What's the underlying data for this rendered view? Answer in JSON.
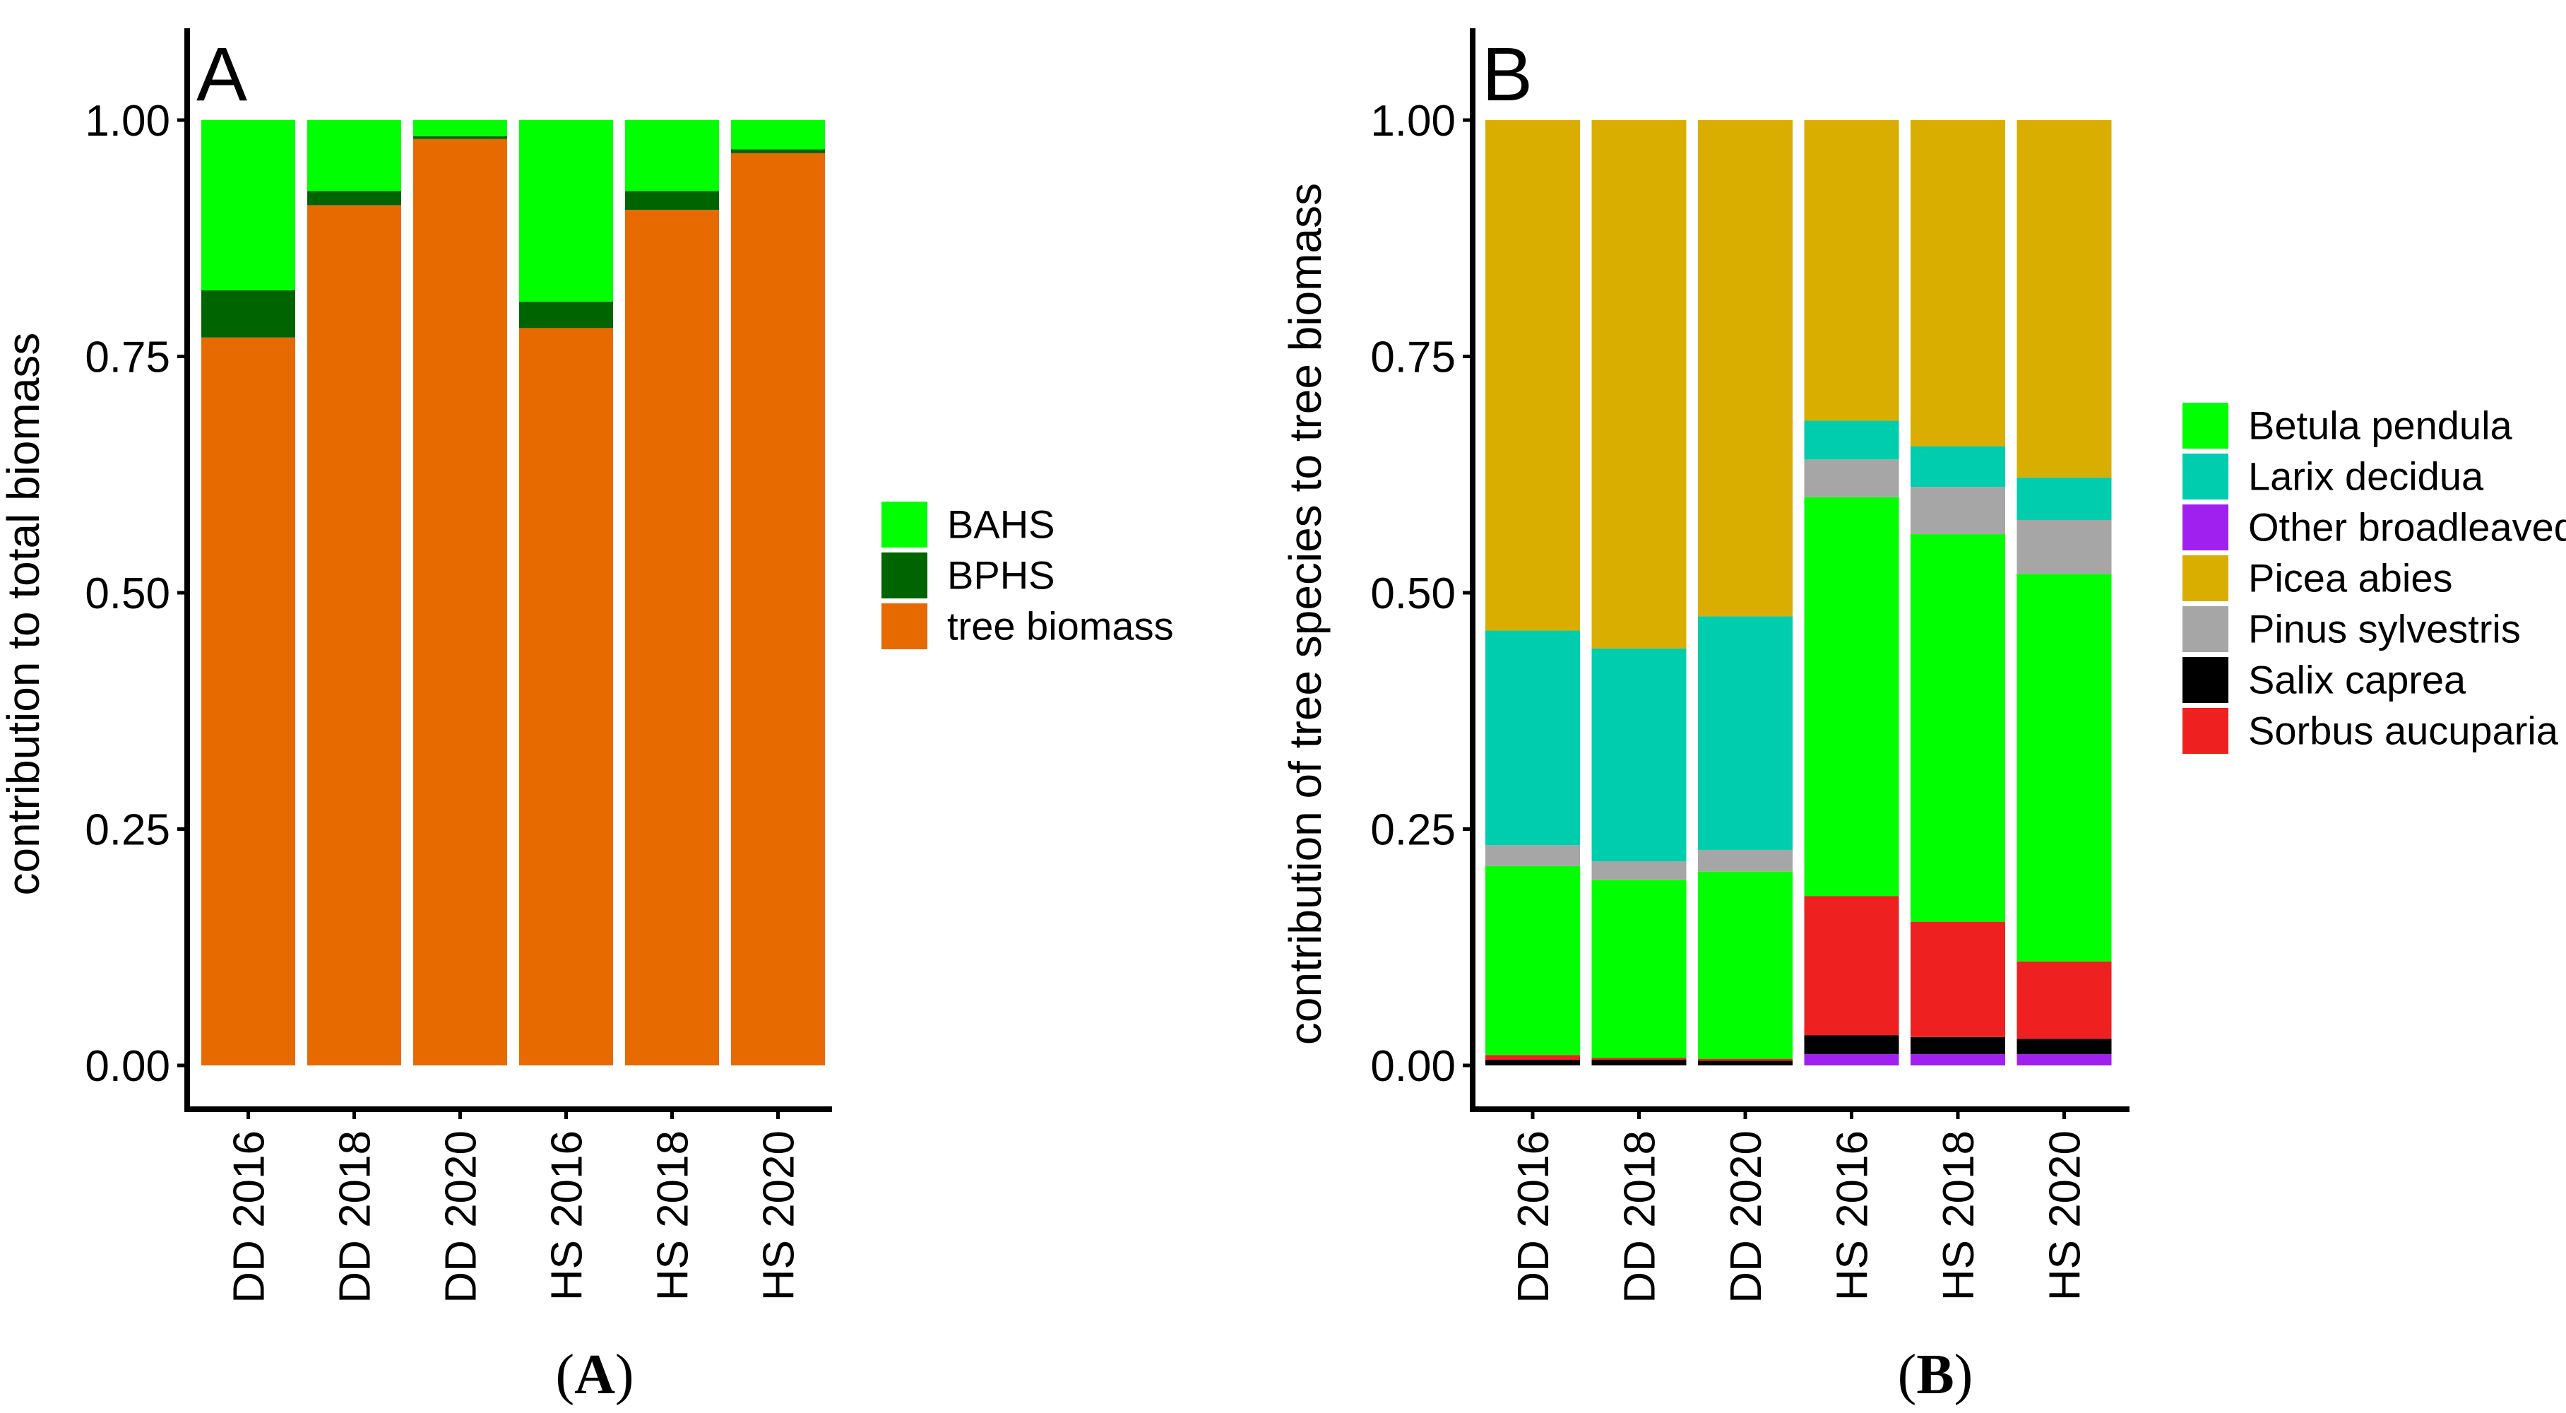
{
  "chart_data": [
    {
      "type": "bar",
      "stacked": true,
      "panel_letter": "A",
      "caption_label": "A",
      "categories": [
        "DD 2016",
        "DD 2018",
        "DD 2020",
        "HS 2016",
        "HS 2018",
        "HS 2020"
      ],
      "ylabel": "contribution to total biomass",
      "xlabel": "",
      "ylim": [
        0,
        1
      ],
      "yticks": [
        "0.00",
        "0.25",
        "0.50",
        "0.75",
        "1.00"
      ],
      "legend_position": "right",
      "series": [
        {
          "name": "tree biomass",
          "color": "#E66A00",
          "values": [
            0.77,
            0.91,
            0.98,
            0.78,
            0.905,
            0.965
          ]
        },
        {
          "name": "BPHS",
          "color": "#006400",
          "values": [
            0.05,
            0.015,
            0.003,
            0.028,
            0.02,
            0.004
          ]
        },
        {
          "name": "BAHS",
          "color": "#00FF00",
          "values": [
            0.18,
            0.075,
            0.017,
            0.192,
            0.075,
            0.031
          ]
        }
      ],
      "legend_order": [
        "BAHS",
        "BPHS",
        "tree biomass"
      ]
    },
    {
      "type": "bar",
      "stacked": true,
      "panel_letter": "B",
      "caption_label": "B",
      "categories": [
        "DD 2016",
        "DD 2018",
        "DD 2020",
        "HS 2016",
        "HS 2018",
        "HS 2020"
      ],
      "ylabel": "contribution of tree species to tree biomass",
      "xlabel": "",
      "ylim": [
        0,
        1
      ],
      "yticks": [
        "0.00",
        "0.25",
        "0.50",
        "0.75",
        "1.00"
      ],
      "legend_position": "right",
      "series": [
        {
          "name": "Other broadleaved",
          "color": "#A020F0",
          "values": [
            0.0,
            0.0,
            0.0,
            0.012,
            0.012,
            0.012
          ]
        },
        {
          "name": "Salix caprea",
          "color": "#000000",
          "values": [
            0.006,
            0.006,
            0.005,
            0.02,
            0.018,
            0.016
          ]
        },
        {
          "name": "Sorbus aucuparia",
          "color": "#EE2020",
          "values": [
            0.005,
            0.002,
            0.002,
            0.147,
            0.122,
            0.082
          ]
        },
        {
          "name": "Betula pendula",
          "color": "#00FF00",
          "values": [
            0.2,
            0.188,
            0.198,
            0.422,
            0.41,
            0.41
          ]
        },
        {
          "name": "Pinus sylvestris",
          "color": "#A6A6A6",
          "values": [
            0.022,
            0.02,
            0.023,
            0.04,
            0.05,
            0.057
          ]
        },
        {
          "name": "Larix decidua",
          "color": "#00CDAD",
          "values": [
            0.227,
            0.225,
            0.247,
            0.041,
            0.043,
            0.045
          ]
        },
        {
          "name": "Picea abies",
          "color": "#D9AE00",
          "values": [
            0.54,
            0.559,
            0.525,
            0.318,
            0.345,
            0.378
          ]
        }
      ],
      "legend_order": [
        "Betula pendula",
        "Larix decidua",
        "Other broadleaved",
        "Picea abies",
        "Pinus sylvestris",
        "Salix caprea",
        "Sorbus aucuparia"
      ]
    }
  ]
}
